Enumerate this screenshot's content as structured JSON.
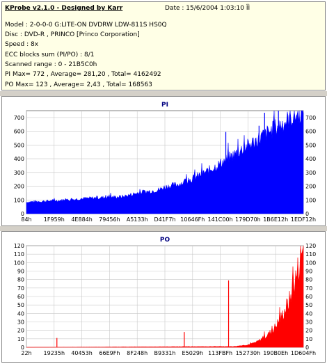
{
  "info": {
    "title": "KProbe v2.1.0 - Designed by Karr",
    "date": "Date : 15/6/2004 1:03:10 ÎÌ",
    "lines": [
      "Model : 2-0-0-0 G:LITE-ON DVDRW LDW-811S   HS0Q",
      "Disc : DVD-R , PRINCO [Princo Corporation]",
      "Speed : 8x",
      "ECC blocks sum (PI/PO) : 8/1",
      "Scanned range : 0 - 21B5C0h",
      "PI Max= 772 , Average= 281,20 , Total= 4162492",
      "PO Max= 123 , Average= 2,43 , Total= 168563"
    ]
  },
  "colors": {
    "pi": "#0000ff",
    "po": "#ff0000",
    "panel_bg": "#ffffe6",
    "gap": "#d4d0c8",
    "title": "#000080"
  },
  "chart_data": [
    {
      "type": "area",
      "title": "PI",
      "ylim": [
        0,
        750
      ],
      "yticks": [
        0,
        100,
        200,
        300,
        400,
        500,
        600,
        700
      ],
      "xticks": [
        "84h",
        "1F959h",
        "4E884h",
        "79456h",
        "A5133h",
        "D41F7h",
        "10646Fh",
        "141C00h",
        "179D70h",
        "1B6E12h",
        "1EDF12h"
      ],
      "profile": [
        [
          0.0,
          85
        ],
        [
          0.05,
          90
        ],
        [
          0.1,
          95
        ],
        [
          0.15,
          100
        ],
        [
          0.2,
          110
        ],
        [
          0.25,
          115
        ],
        [
          0.3,
          120
        ],
        [
          0.35,
          125
        ],
        [
          0.38,
          140
        ],
        [
          0.4,
          150
        ],
        [
          0.45,
          165
        ],
        [
          0.48,
          175
        ],
        [
          0.5,
          195
        ],
        [
          0.55,
          215
        ],
        [
          0.6,
          255
        ],
        [
          0.65,
          305
        ],
        [
          0.7,
          365
        ],
        [
          0.75,
          430
        ],
        [
          0.8,
          495
        ],
        [
          0.85,
          560
        ],
        [
          0.9,
          625
        ],
        [
          0.95,
          690
        ],
        [
          1.0,
          745
        ]
      ],
      "spikes": [
        [
          0.72,
          595
        ],
        [
          0.84,
          640
        ],
        [
          0.86,
          735
        ],
        [
          0.91,
          760
        ]
      ]
    },
    {
      "type": "area",
      "title": "PO",
      "ylim": [
        0,
        120
      ],
      "yticks": [
        0,
        10,
        20,
        30,
        40,
        50,
        60,
        70,
        80,
        90,
        100,
        110,
        120
      ],
      "xticks": [
        "22h",
        "19235h",
        "40453h",
        "66E9Fh",
        "8F248h",
        "B9331h",
        "E5029h",
        "113FBFh",
        "152730h",
        "190B0Eh",
        "1D604Fh"
      ],
      "profile": [
        [
          0.0,
          0
        ],
        [
          0.75,
          1
        ],
        [
          0.8,
          3
        ],
        [
          0.83,
          6
        ],
        [
          0.86,
          12
        ],
        [
          0.89,
          20
        ],
        [
          0.92,
          35
        ],
        [
          0.95,
          55
        ],
        [
          0.98,
          90
        ],
        [
          1.0,
          120
        ]
      ],
      "spikes": [
        [
          0.11,
          11
        ],
        [
          0.57,
          18
        ],
        [
          0.73,
          79
        ]
      ]
    }
  ]
}
